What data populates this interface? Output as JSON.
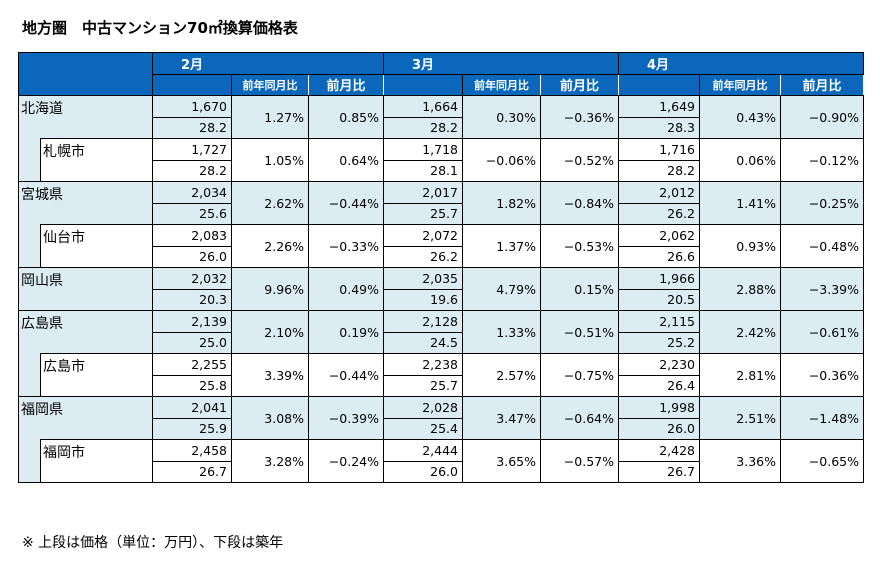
{
  "title": "地方圏　中古マンション70㎡換算価格表",
  "note": "※ 上段は価格（単位：万円）、下段は築年",
  "months": [
    "2月",
    "3月",
    "4月"
  ],
  "yoy_label": "前年同月比",
  "mom_label": "前月比",
  "colors": {
    "header": "#0a67bb",
    "prefecture_row": "#dbedf3",
    "city_row": "#ffffff"
  },
  "rows": [
    {
      "name": "北海道",
      "type": "prefecture",
      "data": [
        [
          "1,670",
          "28.2",
          "1.27%",
          "0.85%"
        ],
        [
          "1,664",
          "28.2",
          "0.30%",
          "−0.36%"
        ],
        [
          "1,649",
          "28.3",
          "0.43%",
          "−0.90%"
        ]
      ]
    },
    {
      "name": "札幌市",
      "type": "city",
      "data": [
        [
          "1,727",
          "28.2",
          "1.05%",
          "0.64%"
        ],
        [
          "1,718",
          "28.1",
          "−0.06%",
          "−0.52%"
        ],
        [
          "1,716",
          "28.2",
          "0.06%",
          "−0.12%"
        ]
      ]
    },
    {
      "name": "宮城県",
      "type": "prefecture",
      "data": [
        [
          "2,034",
          "25.6",
          "2.62%",
          "−0.44%"
        ],
        [
          "2,017",
          "25.7",
          "1.82%",
          "−0.84%"
        ],
        [
          "2,012",
          "26.2",
          "1.41%",
          "−0.25%"
        ]
      ]
    },
    {
      "name": "仙台市",
      "type": "city",
      "data": [
        [
          "2,083",
          "26.0",
          "2.26%",
          "−0.33%"
        ],
        [
          "2,072",
          "26.2",
          "1.37%",
          "−0.53%"
        ],
        [
          "2,062",
          "26.6",
          "0.93%",
          "−0.48%"
        ]
      ]
    },
    {
      "name": "岡山県",
      "type": "prefecture",
      "data": [
        [
          "2,032",
          "20.3",
          "9.96%",
          "0.49%"
        ],
        [
          "2,035",
          "19.6",
          "4.79%",
          "0.15%"
        ],
        [
          "1,966",
          "20.5",
          "2.88%",
          "−3.39%"
        ]
      ]
    },
    {
      "name": "広島県",
      "type": "prefecture",
      "data": [
        [
          "2,139",
          "25.0",
          "2.10%",
          "0.19%"
        ],
        [
          "2,128",
          "24.5",
          "1.33%",
          "−0.51%"
        ],
        [
          "2,115",
          "25.2",
          "2.42%",
          "−0.61%"
        ]
      ]
    },
    {
      "name": "広島市",
      "type": "city",
      "data": [
        [
          "2,255",
          "25.8",
          "3.39%",
          "−0.44%"
        ],
        [
          "2,238",
          "25.7",
          "2.57%",
          "−0.75%"
        ],
        [
          "2,230",
          "26.4",
          "2.81%",
          "−0.36%"
        ]
      ]
    },
    {
      "name": "福岡県",
      "type": "prefecture",
      "data": [
        [
          "2,041",
          "25.9",
          "3.08%",
          "−0.39%"
        ],
        [
          "2,028",
          "25.4",
          "3.47%",
          "−0.64%"
        ],
        [
          "1,998",
          "26.0",
          "2.51%",
          "−1.48%"
        ]
      ]
    },
    {
      "name": "福岡市",
      "type": "city",
      "data": [
        [
          "2,458",
          "26.7",
          "3.28%",
          "−0.24%"
        ],
        [
          "2,444",
          "26.0",
          "3.65%",
          "−0.57%"
        ],
        [
          "2,428",
          "26.7",
          "3.36%",
          "−0.65%"
        ]
      ]
    }
  ]
}
